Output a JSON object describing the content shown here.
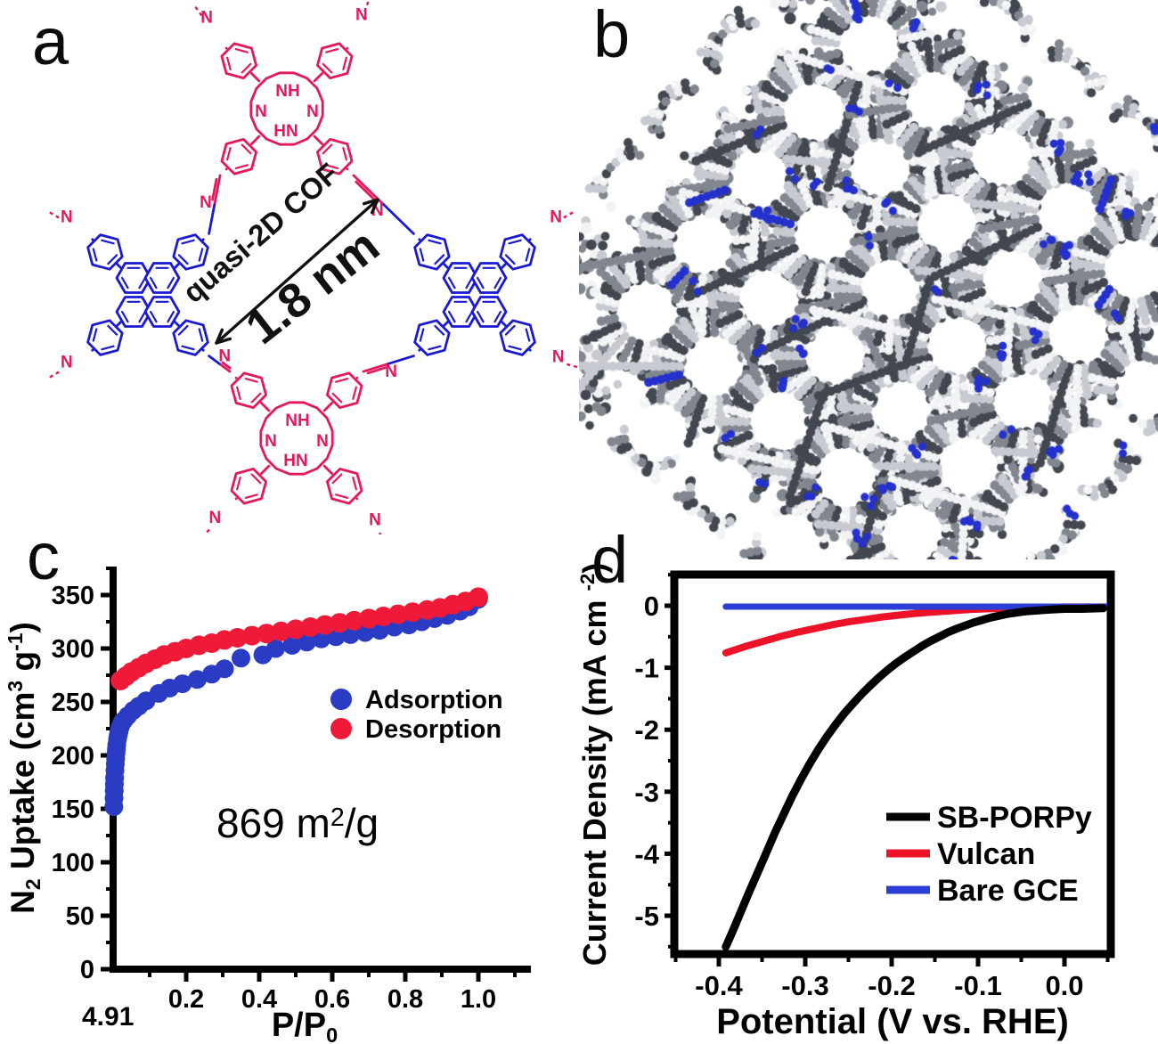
{
  "panels": {
    "a": "a",
    "b": "b",
    "c": "c",
    "d": "d"
  },
  "panel_a": {
    "annotations": {
      "cof": "quasi-2D COF",
      "size": "1.8 nm"
    },
    "core_labels": {
      "nh": "NH",
      "n_right": "N",
      "n_left": "N",
      "hn": "HN"
    },
    "atom_label": "N",
    "colors": {
      "porphyrin": "#e4185c",
      "pyrene": "#1a1ad2",
      "annotation": "#111111"
    }
  },
  "panel_b": {
    "colors": {
      "carbon_dark": "#43474f",
      "carbon_mid": "#82878f",
      "carbon_light": "#c7cbd1",
      "highlight": "#f2f3f5",
      "nitrogen": "#2431cd"
    }
  },
  "chart_data": [
    {
      "id": "c",
      "type": "scatter",
      "title": "",
      "x_axis": {
        "label_parts": [
          {
            "t": "P/P"
          },
          {
            "t": "0",
            "s": "sub"
          }
        ],
        "ticks": [
          0.2,
          0.4,
          0.6,
          0.8,
          1.0
        ],
        "minor_step": 0.1,
        "range": [
          0,
          1.135
        ]
      },
      "y_axis": {
        "label_parts": [
          {
            "t": "N"
          },
          {
            "t": "2",
            "s": "sub"
          },
          {
            "t": " Uptake (cm"
          },
          {
            "t": "3",
            "s": "sup"
          },
          {
            "t": " g"
          },
          {
            "t": "-1",
            "s": "sup"
          },
          {
            "t": ")"
          }
        ],
        "ticks": [
          0,
          50,
          100,
          150,
          200,
          250,
          300,
          350
        ],
        "minor_step": 25,
        "range": [
          0,
          375
        ]
      },
      "annotation_parts": [
        {
          "t": "869 m"
        },
        {
          "t": "2",
          "s": "sup"
        },
        {
          "t": "/g"
        }
      ],
      "corner_label": "4.91",
      "legend": [
        {
          "name": "Adsorption",
          "color": "#2b3cc4"
        },
        {
          "name": "Desorption",
          "color": "#ee1a37"
        }
      ],
      "legend_position": "center-right",
      "grid": false,
      "series": [
        {
          "name": "Adsorption",
          "color": "#2b3cc4",
          "marker_r": 10.5,
          "points": [
            [
              0.002,
              152
            ],
            [
              0.0025,
              160
            ],
            [
              0.003,
              167
            ],
            [
              0.0035,
              173
            ],
            [
              0.004,
              179
            ],
            [
              0.005,
              186
            ],
            [
              0.006,
              192
            ],
            [
              0.007,
              197
            ],
            [
              0.008,
              202
            ],
            [
              0.009,
              206
            ],
            [
              0.01,
              210
            ],
            [
              0.012,
              215
            ],
            [
              0.014,
              219
            ],
            [
              0.016,
              222
            ],
            [
              0.018,
              225
            ],
            [
              0.021,
              228
            ],
            [
              0.025,
              231
            ],
            [
              0.03,
              233
            ],
            [
              0.04,
              237
            ],
            [
              0.055,
              242
            ],
            [
              0.07,
              246
            ],
            [
              0.09,
              251
            ],
            [
              0.125,
              258
            ],
            [
              0.155,
              263
            ],
            [
              0.19,
              267
            ],
            [
              0.23,
              271
            ],
            [
              0.27,
              276
            ],
            [
              0.305,
              281
            ],
            [
              0.35,
              291
            ],
            [
              0.41,
              294
            ],
            [
              0.445,
              300
            ],
            [
              0.49,
              303
            ],
            [
              0.53,
              306
            ],
            [
              0.57,
              309
            ],
            [
              0.61,
              311
            ],
            [
              0.65,
              313
            ],
            [
              0.69,
              315
            ],
            [
              0.73,
              317
            ],
            [
              0.77,
              320
            ],
            [
              0.81,
              322
            ],
            [
              0.845,
              325
            ],
            [
              0.88,
              328
            ],
            [
              0.915,
              331
            ],
            [
              0.95,
              335
            ],
            [
              0.975,
              339
            ],
            [
              1.0,
              346
            ]
          ]
        },
        {
          "name": "Desorption",
          "color": "#ee1a37",
          "marker_r": 11,
          "points": [
            [
              0.02,
              270
            ],
            [
              0.035,
              274
            ],
            [
              0.05,
              278
            ],
            [
              0.07,
              282
            ],
            [
              0.09,
              286
            ],
            [
              0.115,
              290
            ],
            [
              0.14,
              294
            ],
            [
              0.17,
              297
            ],
            [
              0.2,
              300
            ],
            [
              0.235,
              303
            ],
            [
              0.27,
              305
            ],
            [
              0.305,
              308
            ],
            [
              0.34,
              310
            ],
            [
              0.38,
              312
            ],
            [
              0.42,
              314
            ],
            [
              0.46,
              316
            ],
            [
              0.5,
              318
            ],
            [
              0.54,
              320
            ],
            [
              0.58,
              322
            ],
            [
              0.62,
              324
            ],
            [
              0.66,
              326
            ],
            [
              0.7,
              328
            ],
            [
              0.74,
              330
            ],
            [
              0.78,
              332
            ],
            [
              0.82,
              334
            ],
            [
              0.86,
              336
            ],
            [
              0.895,
              338
            ],
            [
              0.93,
              341
            ],
            [
              0.965,
              344
            ],
            [
              1.0,
              348
            ]
          ]
        }
      ]
    },
    {
      "id": "d",
      "type": "line",
      "title": "",
      "x_axis": {
        "label_parts": [
          {
            "t": "Potential (V vs. RHE)"
          }
        ],
        "ticks": [
          -0.4,
          -0.3,
          -0.2,
          -0.1,
          0.0
        ],
        "minor_step": 0.05,
        "range": [
          -0.4515,
          0.0536
        ]
      },
      "y_axis": {
        "label_parts": [
          {
            "t": "Current Density   (mA cm "
          },
          {
            "t": "-2",
            "s": "sup"
          },
          {
            "t": ")"
          }
        ],
        "ticks": [
          0,
          -1,
          -2,
          -3,
          -4,
          -5
        ],
        "minor_step": 0.5,
        "range": [
          -5.62,
          0.5
        ]
      },
      "legend": [
        {
          "name": "SB-PORPy",
          "color": "#000000"
        },
        {
          "name": "Vulcan",
          "color": "#ee1228"
        },
        {
          "name": "Bare GCE",
          "color": "#2b3fd6"
        }
      ],
      "legend_position": "lower-right",
      "grid": false,
      "series": [
        {
          "name": "Vulcan",
          "color": "#ee1228",
          "width": 8,
          "points": [
            [
              -0.392,
              -0.76
            ],
            [
              -0.37,
              -0.66
            ],
            [
              -0.35,
              -0.58
            ],
            [
              -0.33,
              -0.5
            ],
            [
              -0.31,
              -0.43
            ],
            [
              -0.29,
              -0.37
            ],
            [
              -0.27,
              -0.31
            ],
            [
              -0.25,
              -0.26
            ],
            [
              -0.23,
              -0.22
            ],
            [
              -0.21,
              -0.18
            ],
            [
              -0.19,
              -0.15
            ],
            [
              -0.17,
              -0.12
            ],
            [
              -0.15,
              -0.1
            ],
            [
              -0.13,
              -0.08
            ],
            [
              -0.11,
              -0.06
            ],
            [
              -0.09,
              -0.05
            ],
            [
              -0.07,
              -0.04
            ],
            [
              -0.05,
              -0.03
            ],
            [
              -0.03,
              -0.03
            ],
            [
              0.0,
              -0.02
            ],
            [
              0.053,
              -0.02
            ]
          ]
        },
        {
          "name": "Bare GCE",
          "color": "#2b3fd6",
          "width": 7,
          "points": [
            [
              -0.392,
              -0.015
            ],
            [
              0.053,
              -0.015
            ]
          ]
        },
        {
          "name": "SB-PORPy",
          "color": "#000000",
          "width": 9,
          "points": [
            [
              -0.392,
              -5.5
            ],
            [
              -0.385,
              -5.28
            ],
            [
              -0.375,
              -4.95
            ],
            [
              -0.365,
              -4.62
            ],
            [
              -0.355,
              -4.3
            ],
            [
              -0.345,
              -3.98
            ],
            [
              -0.335,
              -3.66
            ],
            [
              -0.325,
              -3.36
            ],
            [
              -0.315,
              -3.07
            ],
            [
              -0.305,
              -2.8
            ],
            [
              -0.295,
              -2.55
            ],
            [
              -0.285,
              -2.32
            ],
            [
              -0.275,
              -2.11
            ],
            [
              -0.265,
              -1.92
            ],
            [
              -0.255,
              -1.74
            ],
            [
              -0.245,
              -1.58
            ],
            [
              -0.235,
              -1.43
            ],
            [
              -0.225,
              -1.29
            ],
            [
              -0.215,
              -1.16
            ],
            [
              -0.205,
              -1.04
            ],
            [
              -0.195,
              -0.93
            ],
            [
              -0.185,
              -0.83
            ],
            [
              -0.175,
              -0.74
            ],
            [
              -0.165,
              -0.65
            ],
            [
              -0.155,
              -0.57
            ],
            [
              -0.145,
              -0.5
            ],
            [
              -0.135,
              -0.43
            ],
            [
              -0.125,
              -0.37
            ],
            [
              -0.115,
              -0.32
            ],
            [
              -0.105,
              -0.27
            ],
            [
              -0.095,
              -0.23
            ],
            [
              -0.085,
              -0.19
            ],
            [
              -0.075,
              -0.16
            ],
            [
              -0.065,
              -0.13
            ],
            [
              -0.055,
              -0.11
            ],
            [
              -0.045,
              -0.09
            ],
            [
              -0.035,
              -0.08
            ],
            [
              -0.025,
              -0.07
            ],
            [
              -0.015,
              -0.06
            ],
            [
              0.0,
              -0.05
            ],
            [
              0.02,
              -0.05
            ],
            [
              0.045,
              -0.04
            ]
          ]
        }
      ]
    }
  ]
}
